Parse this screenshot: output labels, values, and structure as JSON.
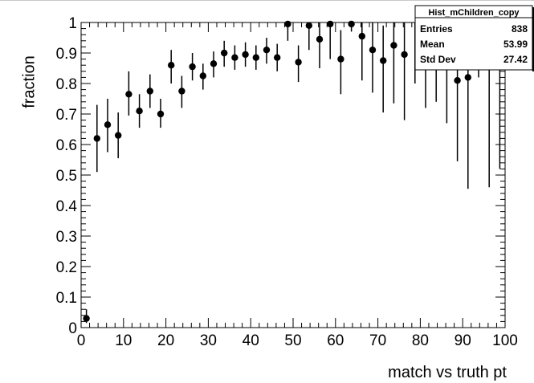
{
  "chart_data": {
    "type": "scatter",
    "title": "",
    "xlabel": "match vs truth pt",
    "ylabel": "fraction",
    "xlim": [
      0,
      100
    ],
    "ylim": [
      0,
      1
    ],
    "x_ticks": [
      "0",
      "10",
      "20",
      "30",
      "40",
      "50",
      "60",
      "70",
      "80",
      "90",
      "100"
    ],
    "y_ticks": [
      "0",
      "0.1",
      "0.2",
      "0.3",
      "0.4",
      "0.5",
      "0.6",
      "0.7",
      "0.8",
      "0.9",
      "1"
    ],
    "grid": false,
    "series": [
      {
        "points": [
          {
            "x": 1.25,
            "y": 0.03,
            "lo": 0.015,
            "hi": 0.06
          },
          {
            "x": 3.75,
            "y": 0.62,
            "lo": 0.51,
            "hi": 0.73
          },
          {
            "x": 6.25,
            "y": 0.665,
            "lo": 0.575,
            "hi": 0.75
          },
          {
            "x": 8.75,
            "y": 0.63,
            "lo": 0.555,
            "hi": 0.705
          },
          {
            "x": 11.25,
            "y": 0.765,
            "lo": 0.695,
            "hi": 0.84
          },
          {
            "x": 13.75,
            "y": 0.71,
            "lo": 0.655,
            "hi": 0.765
          },
          {
            "x": 16.25,
            "y": 0.775,
            "lo": 0.72,
            "hi": 0.83
          },
          {
            "x": 18.75,
            "y": 0.7,
            "lo": 0.655,
            "hi": 0.75
          },
          {
            "x": 21.25,
            "y": 0.86,
            "lo": 0.8,
            "hi": 0.91
          },
          {
            "x": 23.75,
            "y": 0.775,
            "lo": 0.72,
            "hi": 0.825
          },
          {
            "x": 26.25,
            "y": 0.855,
            "lo": 0.81,
            "hi": 0.9
          },
          {
            "x": 28.75,
            "y": 0.825,
            "lo": 0.78,
            "hi": 0.865
          },
          {
            "x": 31.25,
            "y": 0.865,
            "lo": 0.82,
            "hi": 0.905
          },
          {
            "x": 33.75,
            "y": 0.9,
            "lo": 0.855,
            "hi": 0.94
          },
          {
            "x": 36.25,
            "y": 0.885,
            "lo": 0.845,
            "hi": 0.925
          },
          {
            "x": 38.75,
            "y": 0.895,
            "lo": 0.855,
            "hi": 0.935
          },
          {
            "x": 41.25,
            "y": 0.885,
            "lo": 0.845,
            "hi": 0.925
          },
          {
            "x": 43.75,
            "y": 0.91,
            "lo": 0.865,
            "hi": 0.95
          },
          {
            "x": 46.25,
            "y": 0.885,
            "lo": 0.84,
            "hi": 0.93
          },
          {
            "x": 48.75,
            "y": 0.995,
            "lo": 0.94,
            "hi": 1.0
          },
          {
            "x": 51.25,
            "y": 0.87,
            "lo": 0.805,
            "hi": 0.925
          },
          {
            "x": 53.75,
            "y": 0.99,
            "lo": 0.91,
            "hi": 1.0
          },
          {
            "x": 56.25,
            "y": 0.945,
            "lo": 0.85,
            "hi": 1.0
          },
          {
            "x": 58.75,
            "y": 0.995,
            "lo": 0.88,
            "hi": 1.0
          },
          {
            "x": 61.25,
            "y": 0.88,
            "lo": 0.765,
            "hi": 0.975
          },
          {
            "x": 63.75,
            "y": 0.995,
            "lo": 0.97,
            "hi": 1.0
          },
          {
            "x": 66.25,
            "y": 0.955,
            "lo": 0.81,
            "hi": 1.0
          },
          {
            "x": 68.75,
            "y": 0.91,
            "lo": 0.77,
            "hi": 1.0
          },
          {
            "x": 71.25,
            "y": 0.875,
            "lo": 0.705,
            "hi": 0.99
          },
          {
            "x": 73.75,
            "y": 0.925,
            "lo": 0.735,
            "hi": 1.0
          },
          {
            "x": 76.25,
            "y": 0.895,
            "lo": 0.68,
            "hi": 1.0
          },
          {
            "x": 78.75,
            "y": null,
            "lo": 0.8,
            "hi": 1.0
          },
          {
            "x": 81.25,
            "y": null,
            "lo": 0.72,
            "hi": 1.0
          },
          {
            "x": 83.75,
            "y": null,
            "lo": 0.74,
            "hi": 1.0
          },
          {
            "x": 86.25,
            "y": null,
            "lo": 0.67,
            "hi": 1.0
          },
          {
            "x": 88.75,
            "y": 0.81,
            "lo": 0.545,
            "hi": 0.99
          },
          {
            "x": 91.25,
            "y": 0.82,
            "lo": 0.455,
            "hi": 1.0
          },
          {
            "x": 93.75,
            "y": null,
            "lo": 0.82,
            "hi": 1.0
          },
          {
            "x": 96.25,
            "y": null,
            "lo": 0.46,
            "hi": 1.0
          },
          {
            "x": 98.75,
            "y": null,
            "lo": 0.52,
            "hi": 1.0
          }
        ]
      }
    ],
    "stats_box": {
      "title": "Hist_mChildren_copy",
      "rows": [
        {
          "label": "Entries",
          "value": "838"
        },
        {
          "label": "Mean",
          "value": "53.99"
        },
        {
          "label": "Std Dev",
          "value": "27.42"
        }
      ]
    }
  }
}
